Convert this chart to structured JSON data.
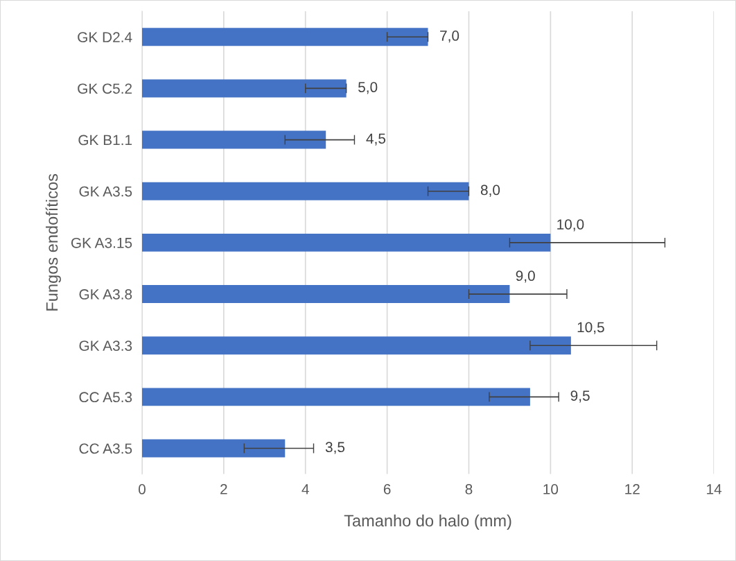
{
  "chart_data": {
    "type": "bar",
    "orientation": "horizontal",
    "xlabel": "Tamanho do halo (mm)",
    "ylabel": "Fungos endofíticos",
    "categories": [
      "GK D2.4",
      "GK C5.2",
      "GK B1.1",
      "GK A3.5",
      "GK A3.15",
      "GK A3.8",
      "GK A3.3",
      "CC A5.3",
      "CC A3.5"
    ],
    "values": [
      7.0,
      5.0,
      4.5,
      8.0,
      10.0,
      9.0,
      10.5,
      9.5,
      3.5
    ],
    "errors": [
      [
        6.0,
        7.0
      ],
      [
        4.0,
        5.0
      ],
      [
        3.5,
        5.2
      ],
      [
        7.0,
        8.0
      ],
      [
        9.0,
        12.8
      ],
      [
        8.0,
        10.4
      ],
      [
        9.5,
        12.6
      ],
      [
        8.5,
        10.2
      ],
      [
        2.5,
        4.2
      ]
    ],
    "value_labels": [
      "7,0",
      "5,0",
      "4,5",
      "8,0",
      "10,0",
      "9,0",
      "10,5",
      "9,5",
      "3,5"
    ],
    "color": "#4472c4",
    "xlim": [
      0,
      14
    ],
    "xticks": [
      0,
      2,
      4,
      6,
      8,
      10,
      12,
      14
    ],
    "grid": "x"
  }
}
